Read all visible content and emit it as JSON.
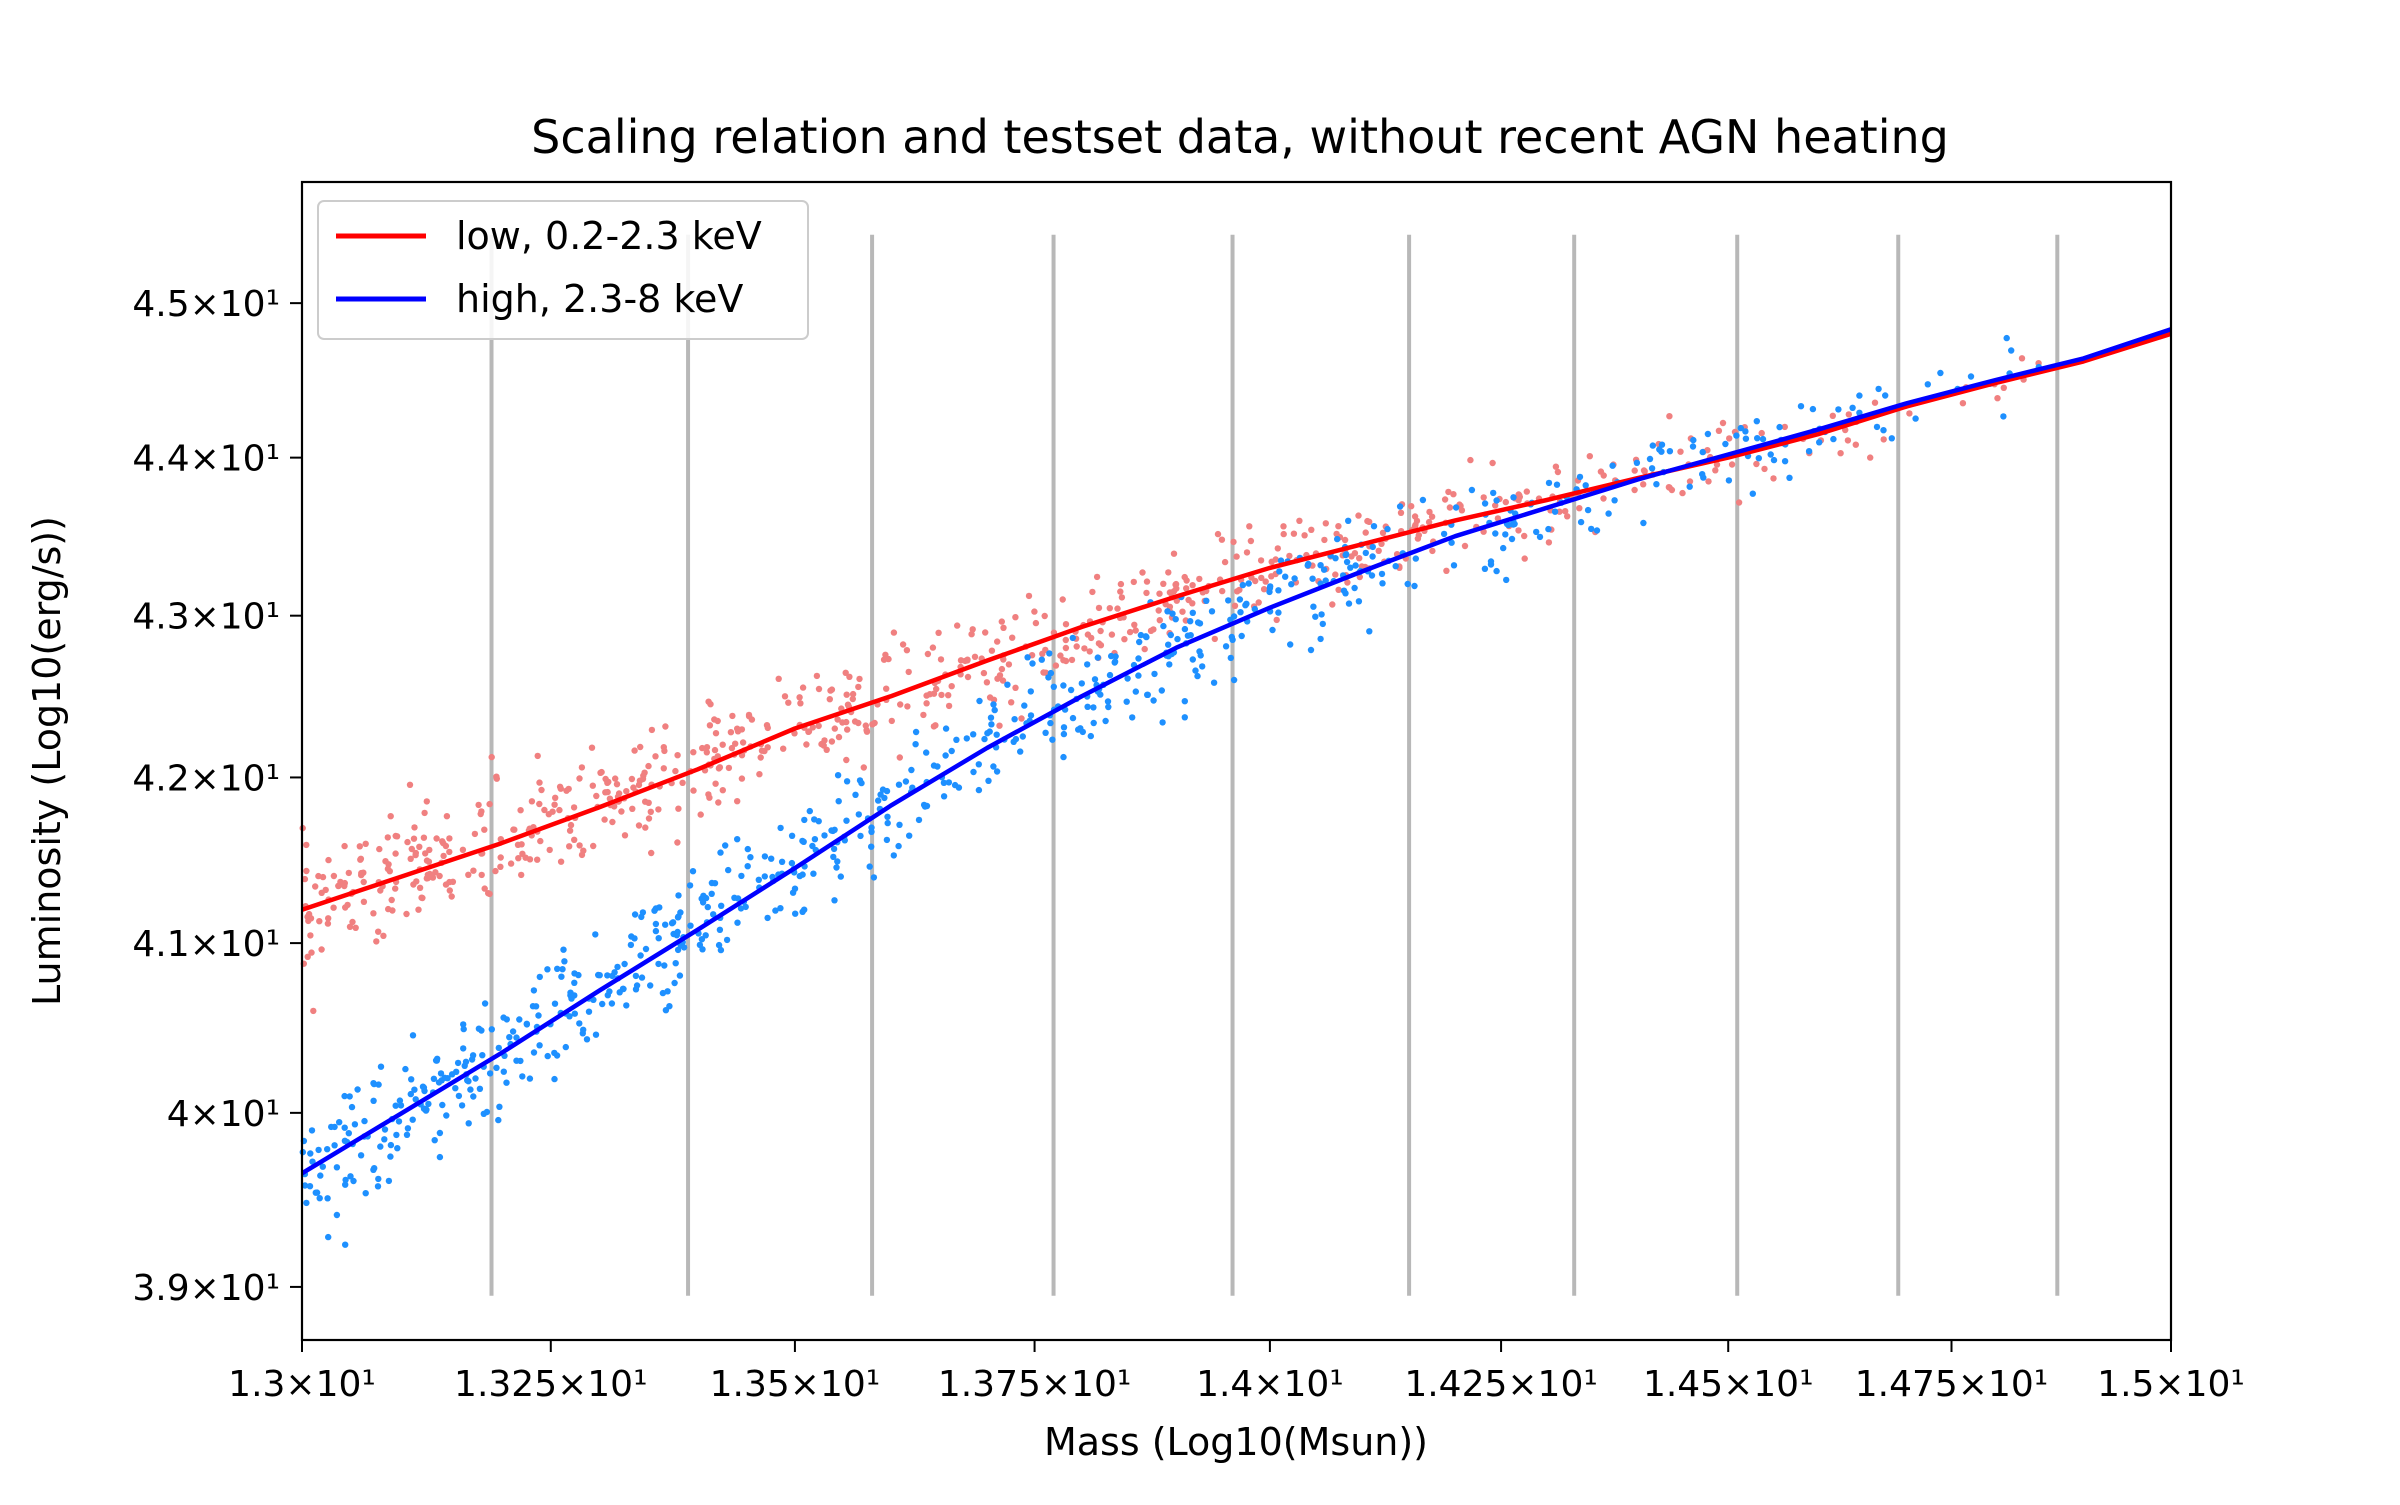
{
  "chart_data": {
    "type": "scatter",
    "title": "Scaling relation and testset data, without recent AGN heating",
    "xlabel": "Mass (Log10(Msun))",
    "ylabel": "Luminosity (Log10(erg/s))",
    "xscale": "log",
    "yscale": "log",
    "xlim": [
      13.0,
      15.0
    ],
    "ylim": [
      38.7,
      45.8
    ],
    "grid": false,
    "legend_position": "upper-left",
    "x_ticks": [
      {
        "value": 13.0,
        "label": "1.3×10¹"
      },
      {
        "value": 13.25,
        "label": "1.325×10¹"
      },
      {
        "value": 13.5,
        "label": "1.35×10¹"
      },
      {
        "value": 13.75,
        "label": "1.375×10¹"
      },
      {
        "value": 14.0,
        "label": "1.4×10¹"
      },
      {
        "value": 14.25,
        "label": "1.425×10¹"
      },
      {
        "value": 14.5,
        "label": "1.45×10¹"
      },
      {
        "value": 14.75,
        "label": "1.475×10¹"
      },
      {
        "value": 15.0,
        "label": "1.5×10¹"
      }
    ],
    "y_ticks": [
      {
        "value": 39.0,
        "label": "3.9×10¹"
      },
      {
        "value": 40.0,
        "label": "4×10¹"
      },
      {
        "value": 41.0,
        "label": "4.1×10¹"
      },
      {
        "value": 42.0,
        "label": "4.2×10¹"
      },
      {
        "value": 43.0,
        "label": "4.3×10¹"
      },
      {
        "value": 44.0,
        "label": "4.4×10¹"
      },
      {
        "value": 45.0,
        "label": "4.5×10¹"
      }
    ],
    "bin_edges": [
      13.19,
      13.39,
      13.58,
      13.77,
      13.96,
      14.15,
      14.33,
      14.51,
      14.69,
      14.87
    ],
    "bin_line_range": [
      38.95,
      45.45
    ],
    "series": [
      {
        "name": "low, 0.2-2.3 keV",
        "line_color": "#ff0000",
        "point_color": "#f08080",
        "curve": {
          "x": [
            13.0,
            13.1,
            13.2,
            13.3,
            13.4,
            13.5,
            13.6,
            13.7,
            13.8,
            13.9,
            14.0,
            14.1,
            14.2,
            14.3,
            14.4,
            14.5,
            14.6,
            14.7,
            14.8,
            14.9,
            15.0
          ],
          "y": [
            41.2,
            41.4,
            41.6,
            41.82,
            42.05,
            42.3,
            42.5,
            42.72,
            42.93,
            43.12,
            43.3,
            43.45,
            43.6,
            43.73,
            43.87,
            44.0,
            44.15,
            44.33,
            44.48,
            44.62,
            44.8
          ]
        },
        "scatter_sigma": 0.18
      },
      {
        "name": "high, 2.3-8 keV",
        "line_color": "#0000ff",
        "point_color": "#1e90ff",
        "curve": {
          "x": [
            13.0,
            13.1,
            13.2,
            13.3,
            13.4,
            13.5,
            13.6,
            13.7,
            13.8,
            13.9,
            14.0,
            14.1,
            14.2,
            14.3,
            14.4,
            14.5,
            14.6,
            14.7,
            14.8,
            14.9,
            15.0
          ],
          "y": [
            39.65,
            40.0,
            40.35,
            40.72,
            41.08,
            41.45,
            41.83,
            42.18,
            42.5,
            42.8,
            43.05,
            43.28,
            43.5,
            43.68,
            43.86,
            44.02,
            44.18,
            44.35,
            44.5,
            44.64,
            44.83
          ]
        },
        "scatter_sigma": 0.2
      }
    ],
    "n_points_per_series": 720
  }
}
